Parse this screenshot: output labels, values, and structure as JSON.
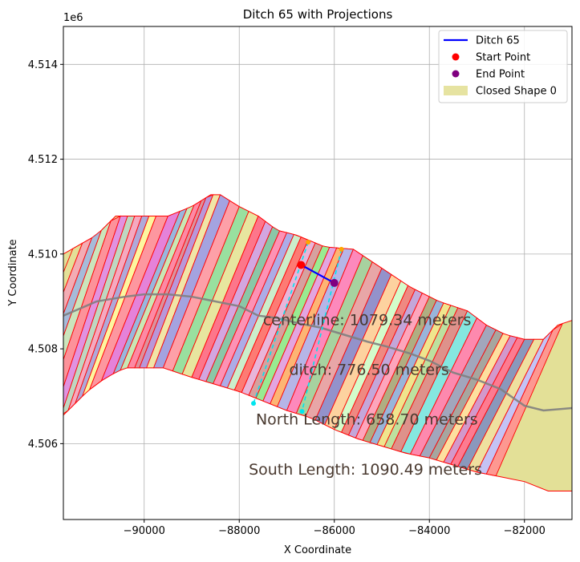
{
  "chart_data": {
    "type": "line",
    "title": "Ditch 65 with Projections",
    "xlabel": "X Coordinate",
    "ylabel": "Y Coordinate",
    "y_offset_label": "1e6",
    "xlim": [
      -91700,
      -81000
    ],
    "ylim": [
      4504400,
      4514800
    ],
    "grid": true,
    "legend_position": "top-right",
    "x_ticks": [
      {
        "value": -90000,
        "label": "−90000"
      },
      {
        "value": -88000,
        "label": "−88000"
      },
      {
        "value": -86000,
        "label": "−86000"
      },
      {
        "value": -84000,
        "label": "−84000"
      },
      {
        "value": -82000,
        "label": "−82000"
      }
    ],
    "y_ticks": [
      {
        "value": 4506000,
        "label": "4.506"
      },
      {
        "value": 4508000,
        "label": "4.508"
      },
      {
        "value": 4510000,
        "label": "4.510"
      },
      {
        "value": 4512000,
        "label": "4.512"
      },
      {
        "value": 4514000,
        "label": "4.514"
      }
    ],
    "legend": [
      {
        "label": "Ditch 65",
        "kind": "line",
        "color": "#0000ff"
      },
      {
        "label": "Start Point",
        "kind": "dot",
        "color": "#ff0000"
      },
      {
        "label": "End Point",
        "kind": "dot",
        "color": "#800080"
      },
      {
        "label": "Closed Shape 0",
        "kind": "patch",
        "color": "#e3e097"
      }
    ],
    "ditch": {
      "name": "Ditch 65",
      "color": "#0000ff",
      "x": [
        -86700,
        -86000
      ],
      "y": [
        4509770,
        4509390
      ]
    },
    "start_point": {
      "x": -86700,
      "y": 4509770,
      "color": "#ff0000"
    },
    "end_point": {
      "x": -86000,
      "y": 4509390,
      "color": "#800080"
    },
    "projection_points": [
      {
        "x": -86550,
        "y": 4510250,
        "color": "#ffa500"
      },
      {
        "x": -85850,
        "y": 4510100,
        "color": "#ffa500"
      },
      {
        "x": -87700,
        "y": 4506850,
        "color": "#00e5ee"
      },
      {
        "x": -86680,
        "y": 4506680,
        "color": "#00e5ee"
      }
    ],
    "projection_lines": [
      {
        "x": [
          -86550,
          -87700
        ],
        "y": [
          4510250,
          4506850
        ],
        "color": "#00e5ee",
        "style": "dashed"
      },
      {
        "x": [
          -85850,
          -86680
        ],
        "y": [
          4510100,
          4506680
        ],
        "color": "#00e5ee",
        "style": "dashed"
      }
    ],
    "centerline": {
      "color": "#808080",
      "x": [
        -91700,
        -91000,
        -90400,
        -90000,
        -89500,
        -89000,
        -88500,
        -88000,
        -87600,
        -87200,
        -86800,
        -86300,
        -85800,
        -85300,
        -84900,
        -84400,
        -84000,
        -83500,
        -83000,
        -82500,
        -82000,
        -81600,
        -81000
      ],
      "y": [
        4508700,
        4509000,
        4509100,
        4509150,
        4509150,
        4509100,
        4509000,
        4508900,
        4508700,
        4508650,
        4508550,
        4508450,
        4508300,
        4508150,
        4508050,
        4507900,
        4507750,
        4507500,
        4507350,
        4507150,
        4506800,
        4506700,
        4506750
      ]
    },
    "corridor": {
      "fill": "#e3e097",
      "edge": "#ff0000",
      "top_x": [
        -91700,
        -91000,
        -90600,
        -90000,
        -89500,
        -89000,
        -88600,
        -88400,
        -88000,
        -87600,
        -87200,
        -86800,
        -86200,
        -85600,
        -85000,
        -84400,
        -83800,
        -83200,
        -82800,
        -82400,
        -82000,
        -81600,
        -81300,
        -81000
      ],
      "top_y": [
        4510000,
        4510400,
        4510800,
        4510800,
        4510800,
        4511000,
        4511250,
        4511250,
        4511000,
        4510800,
        4510500,
        4510400,
        4510150,
        4510100,
        4509700,
        4509300,
        4509000,
        4508800,
        4508500,
        4508300,
        4508200,
        4508200,
        4508500,
        4508600
      ],
      "bottom_x": [
        -91700,
        -91200,
        -90800,
        -90400,
        -90000,
        -89600,
        -89000,
        -88500,
        -88000,
        -87500,
        -87000,
        -86500,
        -86000,
        -85500,
        -85000,
        -84500,
        -84000,
        -83500,
        -83000,
        -82500,
        -82000,
        -81500,
        -81000
      ],
      "bottom_y": [
        4506600,
        4507100,
        4507400,
        4507600,
        4507600,
        4507600,
        4507400,
        4507250,
        4507100,
        4506900,
        4506700,
        4506550,
        4506300,
        4506100,
        4505950,
        4505800,
        4505700,
        4505550,
        4505400,
        4505300,
        4505200,
        4505000,
        4505000
      ]
    },
    "segment_boundaries_x": [
      -91500,
      -91300,
      -91100,
      -90900,
      -90700,
      -90500,
      -90350,
      -90200,
      -90050,
      -89900,
      -89750,
      -89500,
      -89250,
      -89100,
      -88950,
      -88800,
      -88700,
      -88550,
      -88400,
      -88200,
      -88000,
      -87800,
      -87600,
      -87450,
      -87300,
      -87150,
      -87000,
      -86850,
      -86700,
      -86550,
      -86400,
      -86250,
      -86100,
      -85950,
      -85800,
      -85600,
      -85400,
      -85200,
      -85000,
      -84800,
      -84600,
      -84450,
      -84300,
      -84150,
      -84000,
      -83850,
      -83700,
      -83550,
      -83400,
      -83200,
      -83000,
      -82800,
      -82600,
      -82450,
      -82300,
      -82150,
      -82000,
      -81800,
      -81600,
      -81400,
      -81200
    ],
    "segment_colors": [
      "#e3e097",
      "#f4a6b7",
      "#9fb7e0",
      "#c8e6c0",
      "#ff8a9a",
      "#e08ae8",
      "#b9d6c7",
      "#f6a3c4",
      "#a9a3e0",
      "#fff8a0",
      "#ff8fa0",
      "#e478e0",
      "#8fb2e6",
      "#c5e8b8",
      "#ff7fa5",
      "#d98a9e",
      "#b48fe0",
      "#f2e6a8",
      "#9c9ce8",
      "#ff99aa",
      "#90e0a0",
      "#e7e7a0",
      "#ff6a8a",
      "#d0a0e8",
      "#7fc4a8",
      "#ff8ab8",
      "#a6a6f0",
      "#c8f0d0",
      "#ff7070",
      "#e8b0e0",
      "#d49aa0",
      "#90ec90",
      "#e29ee8",
      "#ffb070",
      "#b0b0f0",
      "#ff80c0",
      "#a0d0a0",
      "#e8a0a8",
      "#8a8ad0",
      "#ffd0a0",
      "#d0ffd0",
      "#f08080",
      "#c0a0e0",
      "#ff9ec0",
      "#a8a880",
      "#90b0e0",
      "#f0e68c",
      "#b8e0a0",
      "#dd8a8a",
      "#7ae8e8",
      "#ff80b0",
      "#9aa0c0",
      "#a0a0a0",
      "#ffe0a0",
      "#d090d0",
      "#ff7090",
      "#8090c0",
      "#f0e0a0",
      "#c0c0ff",
      "#ff9090",
      "#e0e090"
    ],
    "annotations": [
      {
        "text": "centerline: 1079.34 meters",
        "x": -87500,
        "y": 4508500
      },
      {
        "text": "ditch: 776.50 meters",
        "x": -86950,
        "y": 4507450
      },
      {
        "text": "North Length: 658.70 meters",
        "x": -87650,
        "y": 4506400
      },
      {
        "text": "South Length: 1090.49 meters",
        "x": -87800,
        "y": 4505350
      }
    ]
  }
}
